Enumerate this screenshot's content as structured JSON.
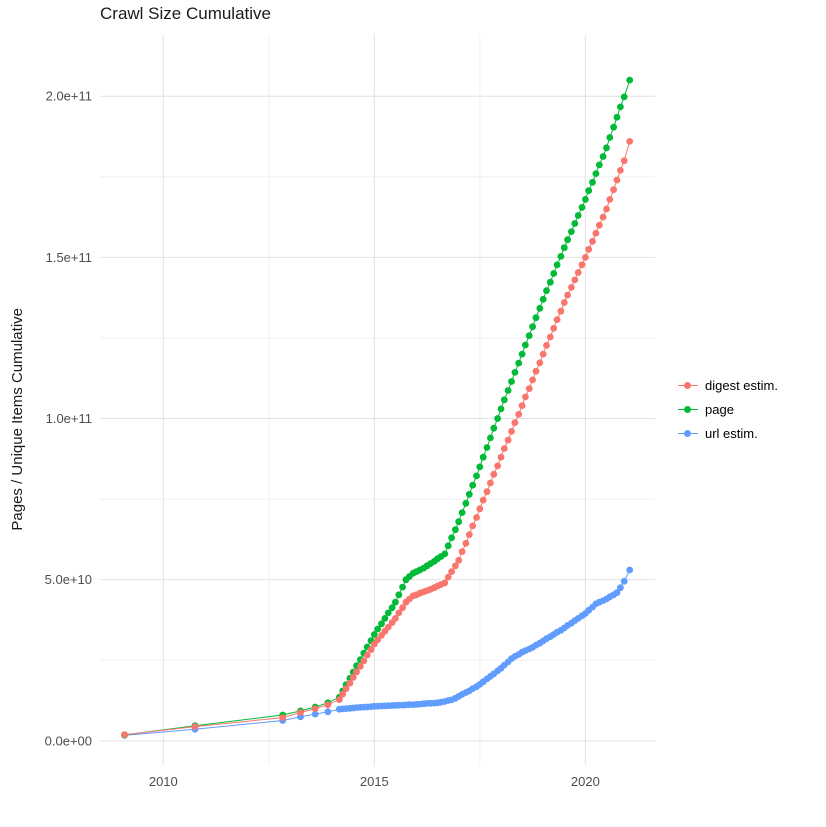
{
  "chart_data": {
    "type": "scatter",
    "title": "Crawl Size Cumulative",
    "xlabel": "",
    "ylabel": "Pages / Unique Items Cumulative",
    "legend_position": "right",
    "grid": true,
    "grid_color_major": "#e2e2e2",
    "grid_color_minor": "#f0f0f0",
    "background_color": "#ffffff",
    "x_domain": [
      2008.5,
      2021.65
    ],
    "y_domain": [
      -7500000000.0,
      219000000000.0
    ],
    "x_ticks": [
      2010,
      2015,
      2020
    ],
    "x_tick_labels": [
      "2010",
      "2015",
      "2020"
    ],
    "x_minor": [
      2012.5,
      2017.5
    ],
    "y_ticks": [
      0,
      50000000000.0,
      100000000000.0,
      150000000000.0,
      200000000000.0
    ],
    "y_tick_labels": [
      "0.0e+00",
      "5.0e+10",
      "1.0e+11",
      "1.5e+11",
      "2.0e+11"
    ],
    "y_minor": [
      25000000000.0,
      75000000000.0,
      125000000000.0,
      175000000000.0
    ],
    "y_unit": 1000000000.0,
    "x": [
      2009.08,
      2010.75,
      2012.83,
      2013.25,
      2013.6,
      2013.9,
      2014.17,
      2014.25,
      2014.33,
      2014.42,
      2014.5,
      2014.58,
      2014.67,
      2014.75,
      2014.83,
      2014.92,
      2015.0,
      2015.08,
      2015.17,
      2015.25,
      2015.33,
      2015.42,
      2015.5,
      2015.58,
      2015.67,
      2015.75,
      2015.83,
      2015.92,
      2016.0,
      2016.08,
      2016.17,
      2016.25,
      2016.33,
      2016.42,
      2016.5,
      2016.58,
      2016.67,
      2016.75,
      2016.83,
      2016.92,
      2017.0,
      2017.08,
      2017.17,
      2017.25,
      2017.33,
      2017.42,
      2017.5,
      2017.58,
      2017.67,
      2017.75,
      2017.83,
      2017.92,
      2018.0,
      2018.08,
      2018.17,
      2018.25,
      2018.33,
      2018.42,
      2018.5,
      2018.58,
      2018.67,
      2018.75,
      2018.83,
      2018.92,
      2019.0,
      2019.08,
      2019.17,
      2019.25,
      2019.33,
      2019.42,
      2019.5,
      2019.58,
      2019.67,
      2019.75,
      2019.83,
      2019.92,
      2020.0,
      2020.08,
      2020.17,
      2020.25,
      2020.33,
      2020.42,
      2020.5,
      2020.58,
      2020.67,
      2020.75,
      2020.83,
      2020.92,
      2021.05
    ],
    "series": [
      {
        "name": "digest estim.",
        "color": "#F8766D",
        "y": [
          1.9,
          4.4,
          7.2,
          8.8,
          10.0,
          11.2,
          12.8,
          14.5,
          16.2,
          17.9,
          19.7,
          21.4,
          23.1,
          24.8,
          26.6,
          28.3,
          30.0,
          31.3,
          32.7,
          34.0,
          35.3,
          36.7,
          38.0,
          39.7,
          41.3,
          43.0,
          44.0,
          45.0,
          45.3,
          45.8,
          46.2,
          46.6,
          47.0,
          47.5,
          48.0,
          48.5,
          49.0,
          50.8,
          52.5,
          54.3,
          56.0,
          58.7,
          61.3,
          64.0,
          66.7,
          69.3,
          72.0,
          74.7,
          77.3,
          80.0,
          82.7,
          85.3,
          88.0,
          90.7,
          93.3,
          96.0,
          98.7,
          101.3,
          104.0,
          106.7,
          109.3,
          112.0,
          114.7,
          117.3,
          120.0,
          122.7,
          125.3,
          128.0,
          130.7,
          133.3,
          136.0,
          138.3,
          140.7,
          143.0,
          145.3,
          147.7,
          150.0,
          152.5,
          155.0,
          157.5,
          160.0,
          162.5,
          165.0,
          168.0,
          171.0,
          174.0,
          177.0,
          180.0,
          186.0
        ]
      },
      {
        "name": "page",
        "color": "#00BA38",
        "y": [
          1.8,
          4.7,
          8.0,
          9.3,
          10.5,
          11.8,
          13.5,
          15.5,
          17.4,
          19.4,
          21.3,
          23.3,
          25.2,
          27.2,
          29.1,
          31.1,
          33.0,
          34.7,
          36.3,
          38.0,
          39.7,
          41.3,
          43.0,
          45.3,
          47.7,
          50.0,
          51.0,
          52.0,
          52.5,
          53.0,
          53.6,
          54.3,
          55.0,
          55.7,
          56.5,
          57.2,
          58.0,
          60.5,
          63.0,
          65.5,
          68.0,
          70.8,
          73.7,
          76.5,
          79.3,
          82.2,
          85.0,
          88.0,
          91.0,
          94.0,
          97.0,
          100.0,
          103.0,
          105.8,
          108.7,
          111.5,
          114.3,
          117.2,
          120.0,
          122.8,
          125.7,
          128.5,
          131.3,
          134.2,
          137.0,
          139.7,
          142.3,
          145.0,
          147.7,
          150.3,
          153.0,
          155.5,
          158.0,
          160.5,
          163.0,
          165.5,
          168.0,
          170.7,
          173.3,
          176.0,
          178.7,
          181.3,
          184.0,
          187.2,
          190.4,
          193.5,
          196.7,
          199.8,
          205.0
        ]
      },
      {
        "name": "url estim.",
        "color": "#619CFF",
        "y": [
          1.7,
          3.6,
          6.3,
          7.5,
          8.3,
          9.0,
          9.8,
          9.9,
          10.0,
          10.1,
          10.2,
          10.3,
          10.4,
          10.45,
          10.5,
          10.6,
          10.7,
          10.75,
          10.8,
          10.85,
          10.9,
          10.95,
          11.0,
          11.05,
          11.1,
          11.15,
          11.2,
          11.25,
          11.3,
          11.4,
          11.5,
          11.6,
          11.65,
          11.7,
          11.8,
          12.0,
          12.2,
          12.5,
          12.7,
          13.2,
          13.8,
          14.4,
          15.0,
          15.5,
          16.2,
          16.8,
          17.5,
          18.3,
          19.2,
          20.0,
          20.8,
          21.7,
          22.5,
          23.5,
          24.5,
          25.5,
          26.2,
          26.8,
          27.5,
          28.0,
          28.5,
          29.0,
          29.7,
          30.3,
          31.0,
          31.7,
          32.3,
          33.0,
          33.7,
          34.3,
          35.0,
          35.8,
          36.5,
          37.3,
          38.0,
          38.8,
          39.5,
          40.5,
          41.5,
          42.5,
          43.0,
          43.5,
          44.0,
          44.7,
          45.3,
          46.0,
          47.5,
          49.5,
          53.0
        ]
      }
    ]
  }
}
